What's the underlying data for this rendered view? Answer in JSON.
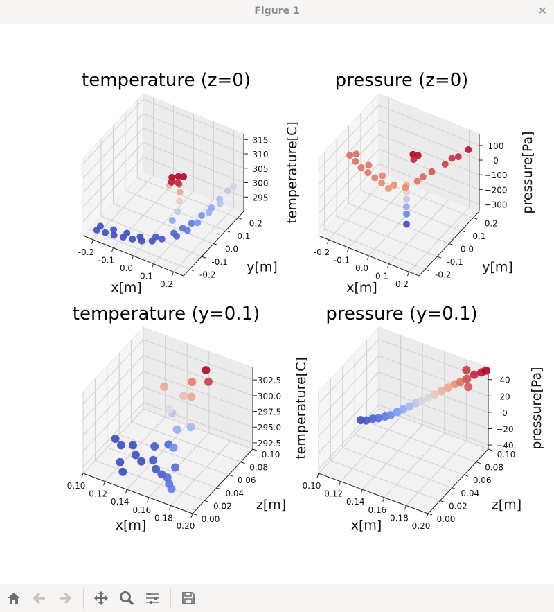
{
  "window": {
    "title": "Figure 1",
    "close_icon": "close-icon"
  },
  "toolbar": {
    "buttons": [
      {
        "name": "home-button",
        "icon": "home-icon",
        "enabled": true
      },
      {
        "name": "back-button",
        "icon": "arrow-left-icon",
        "enabled": false
      },
      {
        "name": "forward-button",
        "icon": "arrow-right-icon",
        "enabled": false
      },
      {
        "name": "pan-button",
        "icon": "move-icon",
        "enabled": true
      },
      {
        "name": "zoom-button",
        "icon": "magnifier-icon",
        "enabled": true
      },
      {
        "name": "configure-subplots-button",
        "icon": "sliders-icon",
        "enabled": true
      },
      {
        "name": "save-button",
        "icon": "floppy-disk-icon",
        "enabled": true
      }
    ]
  },
  "colormap": {
    "name": "coolwarm",
    "stops": [
      "#3b4cc0",
      "#7b9ff9",
      "#dddddd",
      "#f49a7b",
      "#b40426"
    ]
  },
  "chart_data": [
    {
      "type": "scatter3d",
      "title": "temperature (z=0)",
      "xlabel": "x[m]",
      "ylabel": "y[m]",
      "zlabel": "temperature[C]",
      "xlim": [
        -0.25,
        0.25
      ],
      "ylim": [
        -0.25,
        0.25
      ],
      "zlim": [
        290,
        317
      ],
      "xticks": [
        "-0.2",
        "-0.1",
        "0.0",
        "0.1",
        "0.2"
      ],
      "yticks": [
        "-0.2",
        "-0.1",
        "0.0",
        "0.1",
        "0.2"
      ],
      "zticks": [
        "295",
        "300",
        "305",
        "310",
        "315"
      ],
      "grid": true,
      "points": [
        [
          -0.2,
          -0.22,
          292
        ],
        [
          -0.16,
          -0.215,
          292
        ],
        [
          -0.12,
          -0.21,
          292
        ],
        [
          -0.08,
          -0.2,
          292
        ],
        [
          -0.04,
          -0.19,
          292
        ],
        [
          0.0,
          -0.18,
          292
        ],
        [
          0.04,
          -0.16,
          292.2
        ],
        [
          0.07,
          -0.13,
          292.4
        ],
        [
          -0.2,
          -0.19,
          292
        ],
        [
          -0.14,
          -0.18,
          292
        ],
        [
          -0.08,
          -0.17,
          292
        ],
        [
          -0.02,
          -0.16,
          292
        ],
        [
          0.04,
          -0.13,
          292.3
        ],
        [
          0.1,
          -0.08,
          293
        ],
        [
          0.12,
          -0.04,
          293.5
        ],
        [
          0.14,
          0.0,
          294
        ],
        [
          0.16,
          0.05,
          295
        ],
        [
          0.18,
          0.1,
          296
        ],
        [
          0.19,
          0.15,
          297
        ],
        [
          0.2,
          0.2,
          298
        ],
        [
          0.21,
          0.23,
          298.5
        ],
        [
          0.12,
          -0.09,
          293
        ],
        [
          0.15,
          -0.05,
          294
        ],
        [
          0.17,
          0.0,
          295
        ],
        [
          0.19,
          0.06,
          296.5
        ],
        [
          0.21,
          0.12,
          297.5
        ],
        [
          0.08,
          -0.06,
          296
        ],
        [
          0.09,
          -0.03,
          298
        ],
        [
          0.08,
          0.0,
          300
        ],
        [
          0.07,
          0.02,
          302
        ],
        [
          0.06,
          0.03,
          304
        ],
        [
          0.03,
          0.02,
          306
        ],
        [
          0.05,
          0.04,
          306
        ],
        [
          0.07,
          0.05,
          306
        ],
        [
          0.04,
          0.0,
          305.5
        ],
        [
          0.06,
          0.02,
          305
        ],
        [
          0.0,
          0.05,
          301
        ]
      ]
    },
    {
      "type": "scatter3d",
      "title": "pressure (z=0)",
      "xlabel": "x[m]",
      "ylabel": "y[m]",
      "zlabel": "pressure[Pa]",
      "xlim": [
        -0.25,
        0.25
      ],
      "ylim": [
        -0.25,
        0.25
      ],
      "zlim": [
        -350,
        180
      ],
      "xticks": [
        "-0.2",
        "-0.1",
        "0.0",
        "0.1",
        "0.2"
      ],
      "yticks": [
        "-0.2",
        "-0.1",
        "0.0",
        "0.1",
        "0.2"
      ],
      "zticks": [
        "−300",
        "−200",
        "−100",
        "0",
        "100"
      ],
      "grid": true,
      "points": [
        [
          -0.22,
          -0.04,
          30
        ],
        [
          -0.18,
          -0.06,
          28
        ],
        [
          -0.14,
          -0.08,
          25
        ],
        [
          -0.1,
          -0.09,
          22
        ],
        [
          -0.06,
          -0.1,
          18
        ],
        [
          -0.02,
          -0.11,
          12
        ],
        [
          0.02,
          -0.12,
          6
        ],
        [
          -0.2,
          -0.02,
          32
        ],
        [
          -0.12,
          -0.05,
          26
        ],
        [
          -0.04,
          -0.07,
          16
        ],
        [
          0.03,
          -0.09,
          8
        ],
        [
          0.08,
          -0.08,
          10
        ],
        [
          0.11,
          -0.03,
          25
        ],
        [
          0.14,
          0.04,
          45
        ],
        [
          0.17,
          0.1,
          60
        ],
        [
          0.2,
          0.16,
          75
        ],
        [
          0.22,
          0.21,
          90
        ],
        [
          0.12,
          0.0,
          35
        ],
        [
          0.18,
          0.14,
          70
        ],
        [
          0.05,
          0.04,
          80
        ],
        [
          0.06,
          0.06,
          95
        ],
        [
          0.04,
          0.05,
          100
        ],
        [
          0.05,
          -0.02,
          -40
        ],
        [
          0.05,
          -0.02,
          -90
        ],
        [
          0.05,
          -0.02,
          -140
        ],
        [
          0.05,
          -0.02,
          -190
        ],
        [
          0.05,
          -0.02,
          -240
        ],
        [
          0.05,
          -0.02,
          -310
        ]
      ]
    },
    {
      "type": "scatter3d",
      "title": "temperature (y=0.1)",
      "xlabel": "x[m]",
      "ylabel": "z[m]",
      "zlabel": "temperature[C]",
      "xlim": [
        0.1,
        0.2
      ],
      "ylim": [
        0.0,
        0.1
      ],
      "zlim": [
        291.5,
        304.5
      ],
      "xticks": [
        "0.10",
        "0.12",
        "0.14",
        "0.16",
        "0.18",
        "0.20"
      ],
      "yticks": [
        "0.00",
        "0.02",
        "0.04",
        "0.06",
        "0.08",
        "0.10"
      ],
      "zticks": [
        "292.5",
        "295.0",
        "297.5",
        "300.0",
        "302.5"
      ],
      "grid": true,
      "points": [
        [
          0.102,
          0.05,
          292
        ],
        [
          0.11,
          0.045,
          292
        ],
        [
          0.118,
          0.05,
          292
        ],
        [
          0.126,
          0.04,
          292
        ],
        [
          0.134,
          0.035,
          292
        ],
        [
          0.142,
          0.04,
          292.2
        ],
        [
          0.15,
          0.03,
          292.3
        ],
        [
          0.158,
          0.025,
          292.5
        ],
        [
          0.166,
          0.02,
          293
        ],
        [
          0.172,
          0.012,
          293.2
        ],
        [
          0.178,
          0.005,
          293.5
        ],
        [
          0.165,
          0.035,
          293
        ],
        [
          0.12,
          0.025,
          292
        ],
        [
          0.135,
          0.055,
          292.4
        ],
        [
          0.145,
          0.06,
          292.8
        ],
        [
          0.128,
          0.015,
          292
        ],
        [
          0.155,
          0.05,
          294
        ],
        [
          0.15,
          0.065,
          295
        ],
        [
          0.14,
          0.075,
          296
        ],
        [
          0.16,
          0.07,
          295.5
        ],
        [
          0.14,
          0.07,
          297
        ],
        [
          0.145,
          0.085,
          298
        ],
        [
          0.155,
          0.08,
          299
        ],
        [
          0.15,
          0.09,
          300
        ],
        [
          0.16,
          0.095,
          302
        ],
        [
          0.165,
          0.09,
          301
        ],
        [
          0.13,
          0.08,
          299
        ]
      ]
    },
    {
      "type": "scatter3d",
      "title": "pressure (y=0.1)",
      "xlabel": "x[m]",
      "ylabel": "z[m]",
      "zlabel": "pressure[Pa]",
      "xlim": [
        0.1,
        0.2
      ],
      "ylim": [
        0.0,
        0.1
      ],
      "zlim": [
        -45,
        55
      ],
      "xticks": [
        "0.10",
        "0.12",
        "0.14",
        "0.16",
        "0.18",
        "0.20"
      ],
      "yticks": [
        "0.00",
        "0.02",
        "0.04",
        "0.06",
        "0.08",
        "0.10"
      ],
      "zticks": [
        "−40",
        "−20",
        "0",
        "20",
        "40"
      ],
      "grid": true,
      "points": [
        [
          0.1,
          0.07,
          -35
        ],
        [
          0.105,
          0.07,
          -33
        ],
        [
          0.11,
          0.072,
          -30
        ],
        [
          0.115,
          0.072,
          -27
        ],
        [
          0.12,
          0.074,
          -24
        ],
        [
          0.125,
          0.074,
          -20
        ],
        [
          0.13,
          0.076,
          -15
        ],
        [
          0.135,
          0.077,
          -10
        ],
        [
          0.14,
          0.078,
          -5
        ],
        [
          0.145,
          0.08,
          0
        ],
        [
          0.15,
          0.08,
          5
        ],
        [
          0.155,
          0.082,
          10
        ],
        [
          0.16,
          0.084,
          15
        ],
        [
          0.165,
          0.086,
          20
        ],
        [
          0.17,
          0.088,
          25
        ],
        [
          0.175,
          0.09,
          30
        ],
        [
          0.18,
          0.09,
          35
        ],
        [
          0.185,
          0.092,
          40
        ],
        [
          0.19,
          0.095,
          45
        ],
        [
          0.195,
          0.098,
          48
        ],
        [
          0.198,
          0.1,
          50
        ],
        [
          0.19,
          0.085,
          38
        ],
        [
          0.18,
          0.1,
          42
        ]
      ]
    }
  ]
}
